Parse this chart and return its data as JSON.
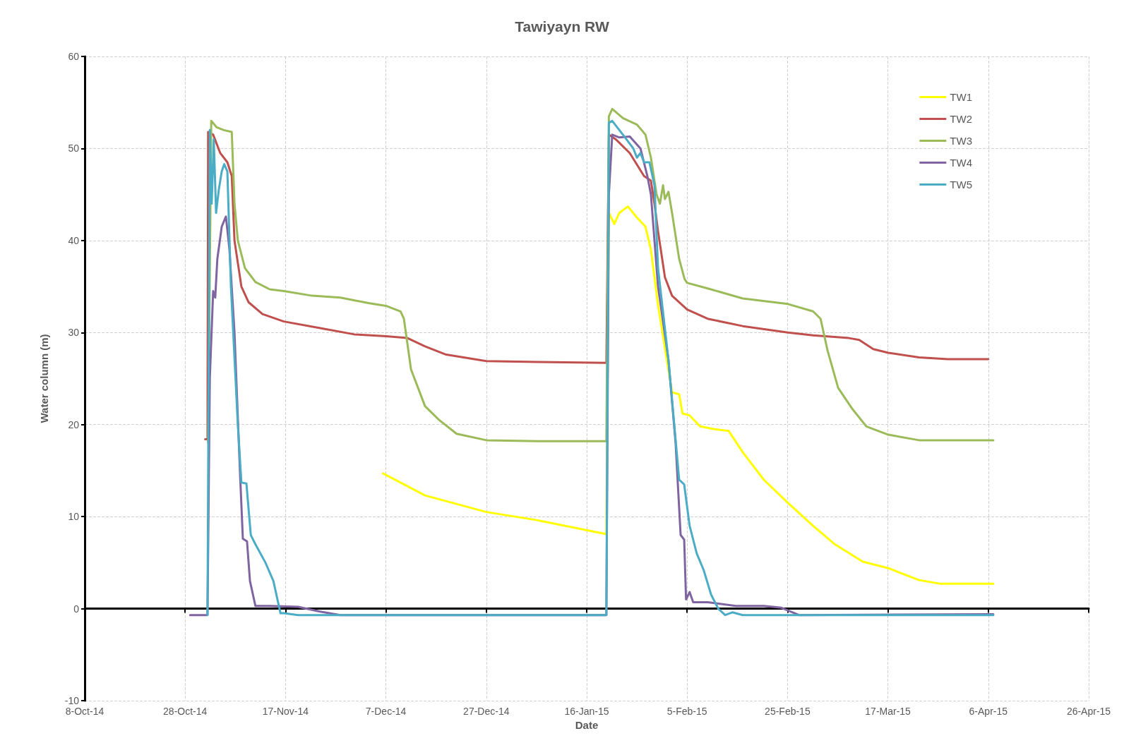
{
  "chart_data": {
    "type": "line",
    "title": "Tawiyayn RW",
    "xlabel": "Date",
    "ylabel": "Water column (m)",
    "xlim": [
      "2014-10-08",
      "2015-04-26"
    ],
    "xticks": [
      {
        "value": "2014-10-08",
        "label": "8-Oct-14"
      },
      {
        "value": "2014-10-28",
        "label": "28-Oct-14"
      },
      {
        "value": "2014-11-17",
        "label": "17-Nov-14"
      },
      {
        "value": "2014-12-07",
        "label": "7-Dec-14"
      },
      {
        "value": "2014-12-27",
        "label": "27-Dec-14"
      },
      {
        "value": "2015-01-16",
        "label": "16-Jan-15"
      },
      {
        "value": "2015-02-05",
        "label": "5-Feb-15"
      },
      {
        "value": "2015-02-25",
        "label": "25-Feb-15"
      },
      {
        "value": "2015-03-17",
        "label": "17-Mar-15"
      },
      {
        "value": "2015-04-06",
        "label": "6-Apr-15"
      },
      {
        "value": "2015-04-26",
        "label": "26-Apr-15"
      }
    ],
    "ylim": [
      -10,
      60
    ],
    "yticks": [
      -10,
      0,
      10,
      20,
      30,
      40,
      50,
      60
    ],
    "grid": true,
    "legend": "top right",
    "marker": "none",
    "line_style": "solid",
    "series": [
      {
        "name": "TW1",
        "color": "#ffff00",
        "x": [
          "2014-12-06T10:00",
          "2014-12-14T19:00",
          "2014-12-27",
          "2015-01-06T07:00",
          "2015-01-19T22:00",
          "2015-01-20T10:00",
          "2015-01-21T12:00",
          "2015-01-22T12:00",
          "2015-01-24T05:00",
          "2015-01-26",
          "2015-01-27T17:00",
          "2015-01-28T19:00",
          "2015-01-30T05:00",
          "2015-02-02",
          "2015-02-03T10:00",
          "2015-02-04T02:00",
          "2015-02-05T12:00",
          "2015-02-07T14:00",
          "2015-02-10T12:00",
          "2015-02-13T07:00",
          "2015-02-16T02:00",
          "2015-02-20T07:00",
          "2015-02-25T02:00",
          "2015-03-02T02:00",
          "2015-03-06T10:00",
          "2015-03-12",
          "2015-03-17T02:00",
          "2015-03-23T05:00",
          "2015-03-27T12:00",
          "2015-04-07"
        ],
        "values": [
          14.7,
          12.3,
          10.5,
          9.6,
          8.1,
          43,
          41.8,
          43,
          43.7,
          42.5,
          41.5,
          39,
          33,
          23.5,
          23.3,
          21.2,
          21,
          19.8,
          19.5,
          19.3,
          17,
          14,
          11.5,
          9,
          7,
          5.1,
          4.4,
          3.1,
          2.7,
          2.7
        ]
      },
      {
        "name": "TW2",
        "color": "#c0504d",
        "x": [
          "2014-11-01",
          "2014-11-01T11:00",
          "2014-11-01T14:00",
          "2014-11-02T14:00",
          "2014-11-04",
          "2014-11-05T10:00",
          "2014-11-06T07:00",
          "2014-11-06T20:00",
          "2014-11-08T05:00",
          "2014-11-09T15:00",
          "2014-11-12T10:00",
          "2014-11-16T16:00",
          "2014-11-23T17:00",
          "2014-11-30T17:00",
          "2014-12-07",
          "2014-12-11T07:00",
          "2014-12-14T19:00",
          "2014-12-19",
          "2014-12-27",
          "2015-01-06T07:00",
          "2015-01-19T22:00",
          "2015-01-20T10:00",
          "2015-01-21T19:00",
          "2015-01-24T14:00",
          "2015-01-27T10:00",
          "2015-01-28T19:00",
          "2015-01-29T12:00",
          "2015-01-30T05:00",
          "2015-01-31T14:00",
          "2015-02-02",
          "2015-02-05",
          "2015-02-09T02:00",
          "2015-02-16T02:00",
          "2015-02-25T02:00",
          "2015-03-02T02:00",
          "2015-03-09T05:00",
          "2015-03-11T07:00",
          "2015-03-14T02:00",
          "2015-03-17T02:00",
          "2015-03-23T05:00",
          "2015-03-28T22:00",
          "2015-04-06"
        ],
        "values": [
          18.4,
          18.4,
          51.8,
          51.5,
          49.5,
          48.5,
          47,
          40,
          35,
          33.3,
          32,
          31.2,
          30.5,
          29.8,
          29.6,
          29.4,
          28.5,
          27.6,
          26.9,
          26.8,
          26.7,
          51.5,
          51,
          49.5,
          47,
          46.5,
          44,
          41,
          36,
          34,
          32.5,
          31.5,
          30.7,
          30,
          29.7,
          29.4,
          29.2,
          28.2,
          27.8,
          27.3,
          27.1,
          27.1
        ]
      },
      {
        "name": "TW3",
        "color": "#9bbb59",
        "x": [
          "2014-11-01T14:00",
          "2014-11-02T05:00",
          "2014-11-03T07:00",
          "2014-11-04T17:00",
          "2014-11-06T07:00",
          "2014-11-06T20:00",
          "2014-11-07T12:00",
          "2014-11-08T22:00",
          "2014-11-11",
          "2014-11-13T20:00",
          "2014-11-16T16:00",
          "2014-11-22T07:00",
          "2014-11-27T22:00",
          "2014-12-03T12:00",
          "2014-12-07",
          "2014-12-09T22:00",
          "2014-12-10T14:00",
          "2014-12-12",
          "2014-12-14T19:00",
          "2014-12-17T14:00",
          "2014-12-21T02:00",
          "2014-12-27",
          "2015-01-06T07:00",
          "2015-01-19T22:00",
          "2015-01-20T10:00",
          "2015-01-21T02:00",
          "2015-01-23T05:00",
          "2015-01-26",
          "2015-01-27T17:00",
          "2015-01-28T19:00",
          "2015-01-29T22:00",
          "2015-01-30T14:00",
          "2015-01-31T05:00",
          "2015-01-31T14:00",
          "2015-02-01T07:00",
          "2015-02-02",
          "2015-02-03T10:00",
          "2015-02-04T12:00",
          "2015-02-05",
          "2015-02-09T02:00",
          "2015-02-16T02:00",
          "2015-02-25T02:00",
          "2015-03-02T02:00",
          "2015-03-03T14:00",
          "2015-03-05",
          "2015-03-07T02:00",
          "2015-03-09T22:00",
          "2015-03-12T17:00",
          "2015-03-17T02:00",
          "2015-03-23T05:00",
          "2015-04-07"
        ],
        "values": [
          18,
          53,
          52.3,
          52,
          51.8,
          44,
          40,
          37,
          35.5,
          34.7,
          34.5,
          34,
          33.8,
          33.2,
          32.9,
          32.3,
          31.5,
          26,
          22,
          20.5,
          19,
          18.3,
          18.2,
          18.2,
          53.5,
          54.3,
          53.3,
          52.6,
          51.5,
          49,
          45,
          44,
          46,
          44.5,
          45.3,
          43,
          38,
          35.8,
          35.4,
          34.8,
          33.7,
          33.1,
          32.3,
          31.5,
          28,
          24,
          21.7,
          19.8,
          18.9,
          18.3,
          18.3
        ]
      },
      {
        "name": "TW4",
        "color": "#8064a2",
        "x": [
          "2014-10-29",
          "2014-11-01T11:00",
          "2014-11-01T22:00",
          "2014-11-02T14:00",
          "2014-11-03",
          "2014-11-03T10:00",
          "2014-11-04T07:00",
          "2014-11-05T03:00",
          "2014-11-05T20:00",
          "2014-11-06T20:00",
          "2014-11-07T22:00",
          "2014-11-08T12:00",
          "2014-11-09T08:00",
          "2014-11-09T22:00",
          "2014-11-11",
          "2014-11-13T20:00",
          "2014-11-19T12:00",
          "2014-11-23T17:00",
          "2014-11-27T22:00",
          "2015-01-19T22:00",
          "2015-01-20T10:00",
          "2015-01-21T02:00",
          "2015-01-22T12:00",
          "2015-01-24T14:00",
          "2015-01-26T17:00",
          "2015-01-28T02:00",
          "2015-01-28T19:00",
          "2015-01-30T05:00",
          "2015-02-01T07:00",
          "2015-02-02T17:00",
          "2015-02-03T17:00",
          "2015-02-04T10:00",
          "2015-02-04T19:00",
          "2015-02-05T12:00",
          "2015-02-06T05:00",
          "2015-02-09T02:00",
          "2015-02-14T17:00",
          "2015-02-20T07:00",
          "2015-02-23T19:00",
          "2015-02-27T07:00",
          "2015-04-06",
          "2015-04-07"
        ],
        "values": [
          -0.7,
          -0.7,
          25,
          34.5,
          33.8,
          38,
          41.5,
          42.6,
          39,
          30,
          15,
          7.6,
          7.3,
          3,
          0.3,
          0.3,
          0.2,
          -0.3,
          -0.7,
          -0.7,
          45,
          51.5,
          51.2,
          51.3,
          50,
          47,
          45,
          35,
          27,
          18,
          8,
          7.5,
          1,
          1.8,
          0.7,
          0.7,
          0.3,
          0.3,
          0.1,
          -0.7,
          -0.6,
          -0.6
        ]
      },
      {
        "name": "TW5",
        "color": "#4bacc6",
        "x": [
          "2014-11-01T11:00",
          "2014-11-01T22:00",
          "2014-11-02T07:00",
          "2014-11-02T17:00",
          "2014-11-03T04:00",
          "2014-11-03T17:00",
          "2014-11-04T07:00",
          "2014-11-04T19:00",
          "2014-11-05T10:00",
          "2014-11-06T03:00",
          "2014-11-07T12:00",
          "2014-11-08T05:00",
          "2014-11-09T05:00",
          "2014-11-10T02:00",
          "2014-11-11",
          "2014-11-13",
          "2014-11-14T14:00",
          "2014-11-16",
          "2014-11-16T16:00",
          "2014-11-19T12:00",
          "2015-01-19T22:00",
          "2015-01-20T10:00",
          "2015-01-21T02:00",
          "2015-01-23T05:00",
          "2015-01-25T07:00",
          "2015-01-26",
          "2015-01-26T17:00",
          "2015-01-27T10:00",
          "2015-01-28T12:00",
          "2015-01-29T12:00",
          "2015-01-30T05:00",
          "2015-02-01T07:00",
          "2015-02-03T10:00",
          "2015-02-04T10:00",
          "2015-02-05T12:00",
          "2015-02-06T22:00",
          "2015-02-08T07:00",
          "2015-02-09T19:00",
          "2015-02-11T05:00",
          "2015-02-12T14:00",
          "2015-02-14",
          "2015-02-16T02:00",
          "2015-04-07"
        ],
        "values": [
          -0.7,
          52,
          44,
          51,
          43,
          45.5,
          47.5,
          48.3,
          47.5,
          35,
          20,
          13.7,
          13.6,
          8,
          7,
          5,
          3,
          -0.5,
          -0.5,
          -0.7,
          -0.7,
          52.8,
          53,
          51.5,
          50,
          49,
          49.5,
          48.5,
          48.5,
          46,
          37,
          27,
          14,
          13.5,
          9,
          6,
          4.2,
          1.5,
          0,
          -0.7,
          -0.4,
          -0.7,
          -0.7
        ]
      }
    ]
  }
}
